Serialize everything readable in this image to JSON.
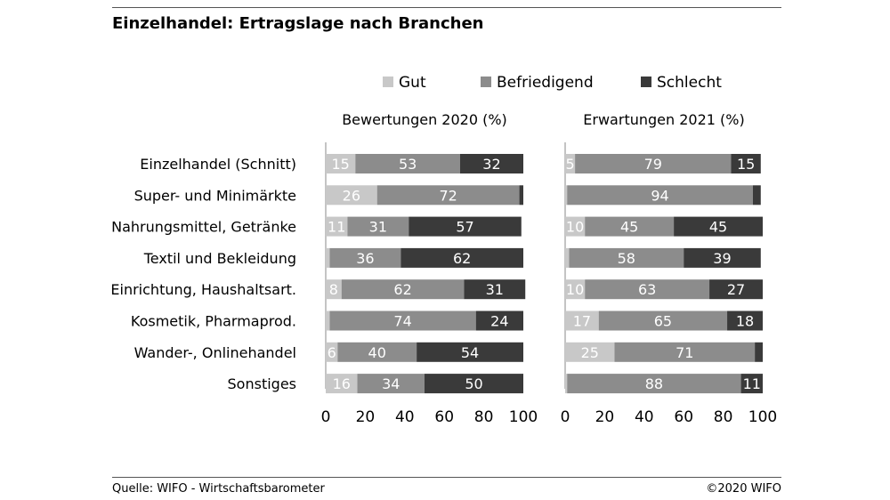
{
  "title": "Einzelhandel: Ertragslage nach Branchen",
  "footer": {
    "source": "Quelle: WIFO - Wirtschaftsbarometer",
    "copyright": "©2020 WIFO"
  },
  "colors": {
    "Gut": "#c8c8c8",
    "Befriedigend": "#8c8c8c",
    "Schlecht": "#3a3a3a"
  },
  "chart_data": {
    "type": "bar",
    "orientation": "horizontal",
    "stacked": true,
    "legend": [
      "Gut",
      "Befriedigend",
      "Schlecht"
    ],
    "legend_position": "top",
    "categories": [
      "Einzelhandel (Schnitt)",
      "Super- und Minimärkte",
      "Nahrungsmittel, Getränke",
      "Textil und Bekleidung",
      "Einrichtung, Haushaltsart.",
      "Kosmetik, Pharmaprod.",
      "Wander-, Onlinehandel",
      "Sonstiges"
    ],
    "xlim": [
      0,
      100
    ],
    "xticks": [
      "0",
      "20",
      "40",
      "60",
      "80",
      "100"
    ],
    "panels": [
      {
        "title": "Bewertungen 2020 (%)",
        "series": [
          {
            "name": "Gut",
            "values": [
              15,
              26,
              11,
              2,
              8,
              2,
              6,
              16
            ]
          },
          {
            "name": "Befriedigend",
            "values": [
              53,
              72,
              31,
              36,
              62,
              74,
              40,
              34
            ]
          },
          {
            "name": "Schlecht",
            "values": [
              32,
              2,
              57,
              62,
              31,
              24,
              54,
              50
            ]
          }
        ],
        "labels": [
          [
            "15",
            "53",
            "32"
          ],
          [
            "26",
            "72",
            ""
          ],
          [
            "11",
            "31",
            "57"
          ],
          [
            "",
            "36",
            "62"
          ],
          [
            "8",
            "62",
            "31"
          ],
          [
            "",
            "74",
            "24"
          ],
          [
            "6",
            "40",
            "54"
          ],
          [
            "16",
            "34",
            "50"
          ]
        ]
      },
      {
        "title": "Erwartungen 2021 (%)",
        "series": [
          {
            "name": "Gut",
            "values": [
              5,
              1,
              10,
              2,
              10,
              17,
              25,
              1
            ]
          },
          {
            "name": "Befriedigend",
            "values": [
              79,
              94,
              45,
              58,
              63,
              65,
              71,
              88
            ]
          },
          {
            "name": "Schlecht",
            "values": [
              15,
              4,
              45,
              39,
              27,
              18,
              4,
              11
            ]
          }
        ],
        "labels": [
          [
            "5",
            "79",
            "15"
          ],
          [
            "",
            "94",
            ""
          ],
          [
            "10",
            "45",
            "45"
          ],
          [
            "",
            "58",
            "39"
          ],
          [
            "10",
            "63",
            "27"
          ],
          [
            "17",
            "65",
            "18"
          ],
          [
            "25",
            "71",
            ""
          ],
          [
            "",
            "88",
            "11"
          ]
        ]
      }
    ]
  }
}
